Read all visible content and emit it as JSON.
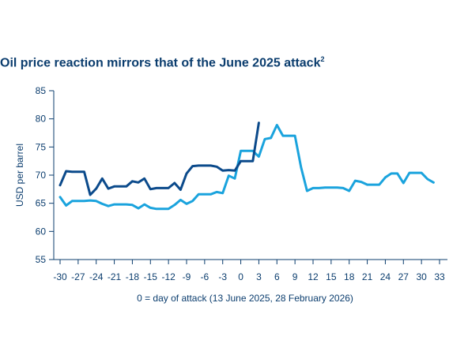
{
  "title": "Oil price reaction mirrors that of the June 2025 attack",
  "title_sup": "2",
  "colors": {
    "text": "#0b3d6e",
    "series_dark": "#0b4a8b",
    "series_light": "#1aa3dd",
    "axis": "#0b3d6e"
  },
  "chart_data": {
    "type": "line",
    "title": "Oil price reaction mirrors that of the June 2025 attack",
    "xlabel": "0 = day of attack (13 June 2025, 28 February 2026)",
    "ylabel": "USD per barrel",
    "xlim": [
      -30,
      33
    ],
    "ylim": [
      55,
      85
    ],
    "xticks": [
      -30,
      -27,
      -24,
      -21,
      -18,
      -15,
      -12,
      -9,
      -6,
      -3,
      0,
      3,
      6,
      9,
      12,
      15,
      18,
      21,
      24,
      27,
      30,
      33
    ],
    "yticks": [
      55,
      60,
      65,
      70,
      75,
      80,
      85
    ],
    "grid": false,
    "series": [
      {
        "color": "#0b4a8b",
        "x": [
          -30,
          -29,
          -28,
          -27,
          -26,
          -25,
          -24,
          -23,
          -22,
          -21,
          -20,
          -19,
          -18,
          -17,
          -16,
          -15,
          -14,
          -13,
          -12,
          -11,
          -10,
          -9,
          -8,
          -7,
          -6,
          -5,
          -4,
          -3,
          -2,
          -1,
          0,
          1,
          2,
          3
        ],
        "y": [
          68.2,
          70.7,
          70.6,
          70.6,
          70.6,
          66.5,
          67.6,
          69.4,
          67.6,
          68.0,
          68.0,
          68.0,
          68.9,
          68.7,
          69.4,
          67.5,
          67.7,
          67.7,
          67.7,
          68.6,
          67.4,
          70.3,
          71.6,
          71.7,
          71.7,
          71.7,
          71.5,
          70.8,
          70.9,
          70.8,
          72.5,
          72.5,
          72.5,
          79.3
        ]
      },
      {
        "color": "#1aa3dd",
        "x": [
          -30,
          -29,
          -28,
          -27,
          -26,
          -25,
          -24,
          -23,
          -22,
          -21,
          -20,
          -19,
          -18,
          -17,
          -16,
          -15,
          -14,
          -13,
          -12,
          -11,
          -10,
          -9,
          -8,
          -7,
          -6,
          -5,
          -4,
          -3,
          -2,
          -1,
          0,
          1,
          2,
          3,
          4,
          5,
          6,
          7,
          8,
          9,
          10,
          11,
          12,
          13,
          14,
          15,
          16,
          17,
          18,
          19,
          20,
          21,
          22,
          23,
          24,
          25,
          26,
          27,
          28,
          29,
          30,
          31,
          32
        ],
        "y": [
          66.1,
          64.6,
          65.4,
          65.4,
          65.4,
          65.5,
          65.4,
          64.9,
          64.5,
          64.8,
          64.8,
          64.8,
          64.7,
          64.1,
          64.8,
          64.2,
          64.0,
          64.0,
          64.0,
          64.7,
          65.6,
          64.9,
          65.4,
          66.6,
          66.6,
          66.6,
          67.0,
          66.8,
          69.9,
          69.4,
          74.3,
          74.3,
          74.3,
          73.3,
          76.4,
          76.6,
          78.9,
          77.0,
          77.0,
          77.0,
          71.4,
          67.2,
          67.7,
          67.7,
          67.8,
          67.8,
          67.8,
          67.7,
          67.2,
          69.0,
          68.8,
          68.3,
          68.3,
          68.3,
          69.6,
          70.3,
          70.3,
          68.6,
          70.4,
          70.4,
          70.4,
          69.3,
          68.7
        ]
      }
    ]
  }
}
